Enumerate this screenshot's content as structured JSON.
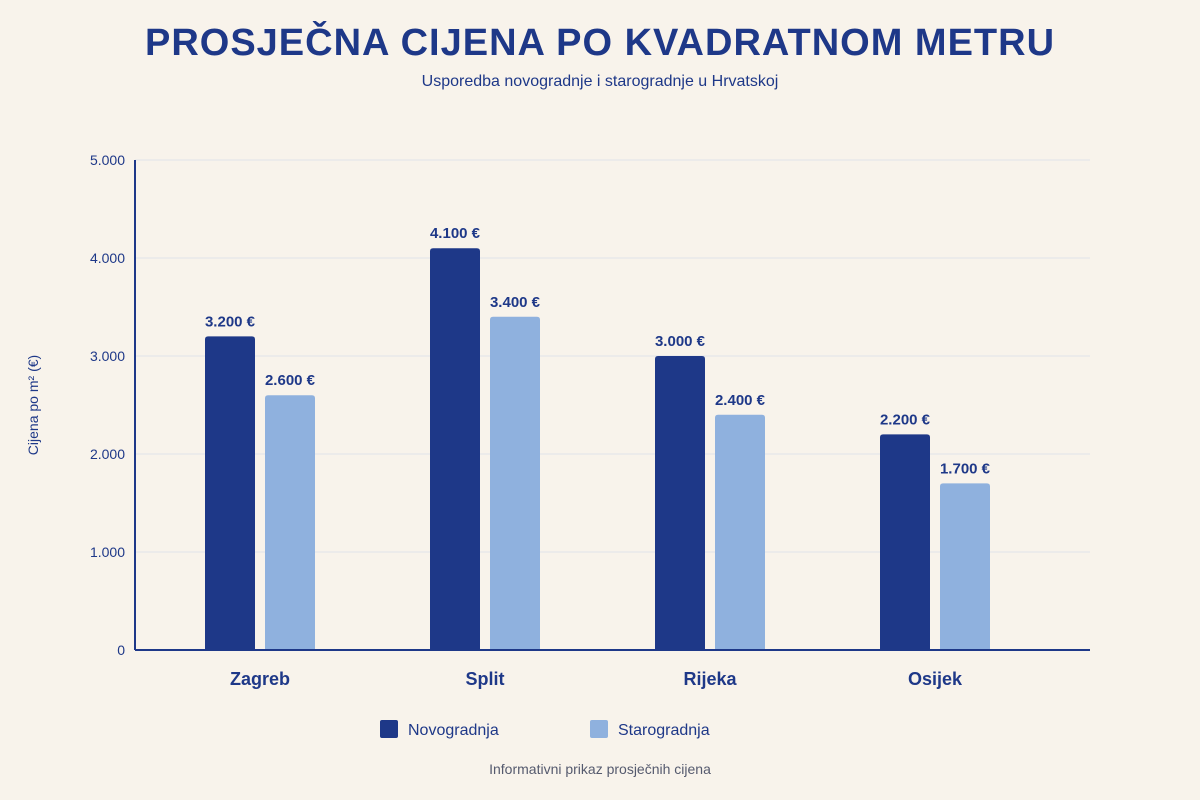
{
  "page": {
    "title": "PROSJEČNA CIJENA PO KVADRATNOM METRU",
    "subtitle": "Usporedba novogradnje i starogradnje u Hrvatskoj",
    "footnote": "Informativni prikaz prosječnih cijena"
  },
  "chart_data": {
    "type": "bar",
    "categories": [
      "Zagreb",
      "Split",
      "Rijeka",
      "Osijek"
    ],
    "series": [
      {
        "name": "Novogradnja",
        "values": [
          3200,
          4100,
          3000,
          2200
        ],
        "color": "#1e3888",
        "labels": [
          "3.200 €",
          "4.100 €",
          "3.000 €",
          "2.200 €"
        ]
      },
      {
        "name": "Starogradnja",
        "values": [
          2600,
          3400,
          2400,
          1700
        ],
        "color": "#8fb1de",
        "labels": [
          "2.600 €",
          "3.400 €",
          "2.400 €",
          "1.700 €"
        ]
      }
    ],
    "ylabel": "Cijena po m² (€)",
    "xlabel": "",
    "ylim": [
      0,
      5000
    ],
    "yticks": [
      0,
      1000,
      2000,
      3000,
      4000,
      5000
    ],
    "ytick_labels": [
      "0",
      "1.000",
      "2.000",
      "3.000",
      "4.000",
      "5.000"
    ],
    "grid": true,
    "legend_position": "bottom-center"
  }
}
